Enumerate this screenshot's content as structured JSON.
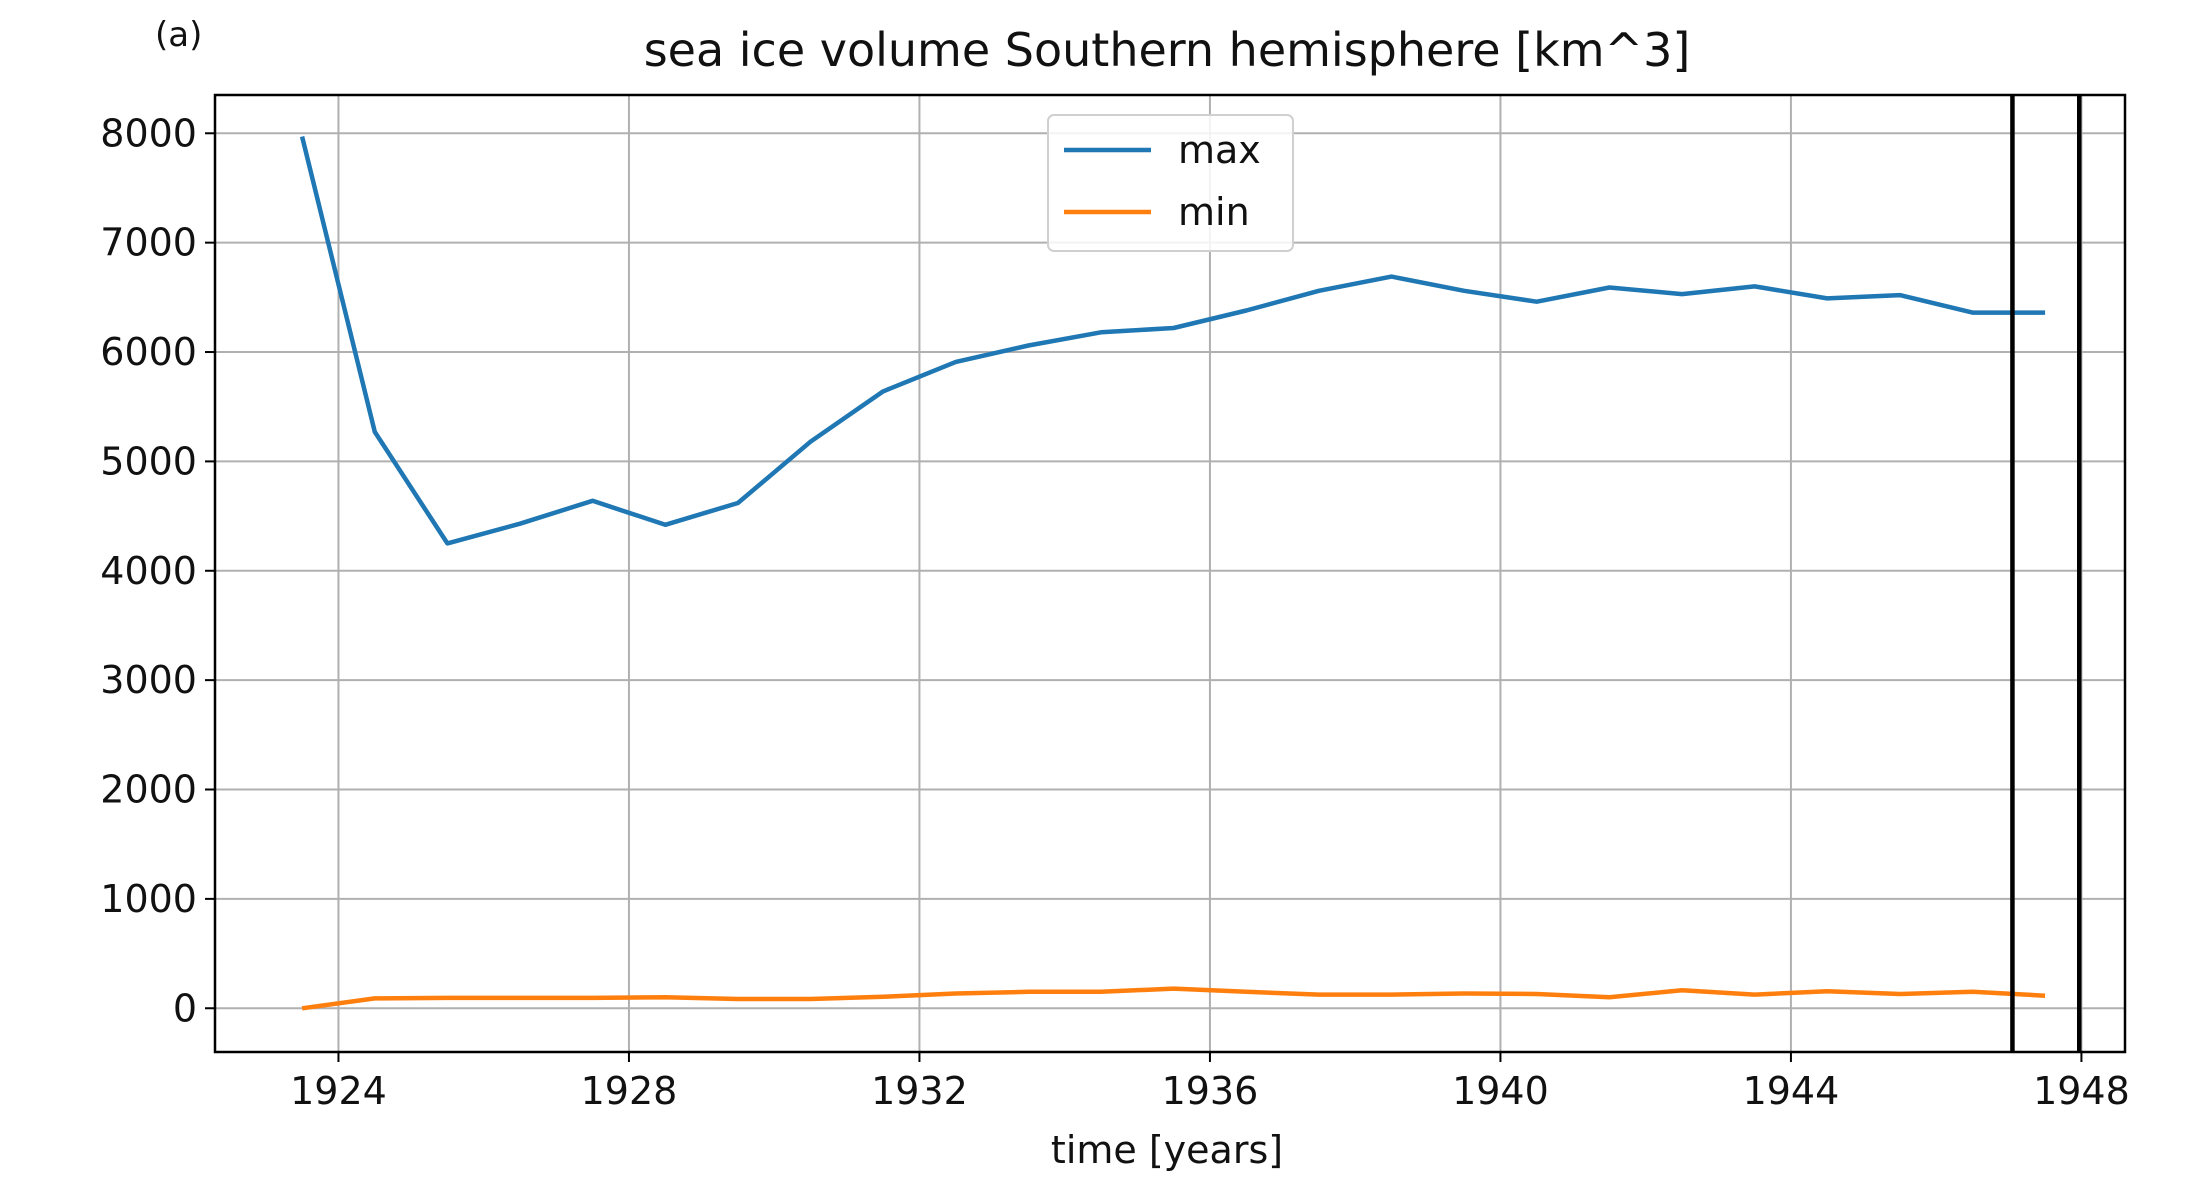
{
  "panel_label": "(a)",
  "chart_data": {
    "type": "line",
    "title": "sea ice volume Southern hemisphere [km^3]",
    "xlabel": "time [years]",
    "ylabel": "",
    "xlim": [
      1922.3,
      1948.6
    ],
    "ylim": [
      -400,
      8350
    ],
    "xticks": [
      1924,
      1928,
      1932,
      1936,
      1940,
      1944,
      1948
    ],
    "yticks": [
      0,
      1000,
      2000,
      3000,
      4000,
      5000,
      6000,
      7000,
      8000
    ],
    "grid": true,
    "legend_position": "upper center",
    "vertical_lines": [
      1947.05,
      1947.97
    ],
    "x": [
      1923.5,
      1924.5,
      1925.5,
      1926.5,
      1927.5,
      1928.5,
      1929.5,
      1930.5,
      1931.5,
      1932.5,
      1933.5,
      1934.5,
      1935.5,
      1936.5,
      1937.5,
      1938.5,
      1939.5,
      1940.5,
      1941.5,
      1942.5,
      1943.5,
      1944.5,
      1945.5,
      1946.5,
      1947.5
    ],
    "series": [
      {
        "name": "max",
        "color": "#1f77b4",
        "values": [
          7970,
          5270,
          4250,
          4430,
          4640,
          4420,
          4620,
          5180,
          5640,
          5910,
          6060,
          6180,
          6220,
          6380,
          6560,
          6690,
          6560,
          6460,
          6590,
          6530,
          6600,
          6490,
          6520,
          6360,
          6360
        ]
      },
      {
        "name": "min",
        "color": "#ff7f0e",
        "values": [
          0,
          90,
          95,
          95,
          95,
          100,
          85,
          85,
          105,
          135,
          150,
          150,
          180,
          150,
          125,
          125,
          135,
          130,
          100,
          165,
          125,
          155,
          130,
          150,
          115
        ]
      }
    ]
  }
}
